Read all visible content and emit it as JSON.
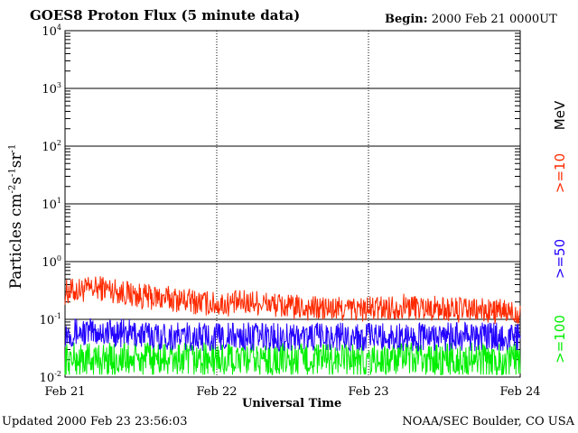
{
  "header": {
    "title": "GOES8 Proton Flux (5 minute data)",
    "begin_label": "Begin:",
    "begin_value": "2000 Feb 21 0000UT"
  },
  "footer": {
    "updated_label": "Updated",
    "updated_value": "2000 Feb 23 23:56:03",
    "source": "NOAA/SEC Boulder, CO USA"
  },
  "colors": {
    "s10": "#ff2a00",
    "s50": "#2200ff",
    "s100": "#00ee00",
    "grid": "#000000"
  },
  "chart_data": {
    "type": "line",
    "title": "GOES8 Proton Flux (5 minute data)",
    "xlabel": "Universal Time",
    "ylabel_base": "Particles cm",
    "ylabel_parts": [
      {
        "text": "Particles cm",
        "sup": "-2"
      },
      {
        "text": "s",
        "sup": "-1"
      },
      {
        "text": "sr",
        "sup": "-1"
      }
    ],
    "unit_label": "MeV",
    "x_ticks": [
      "Feb 21",
      "Feb 22",
      "Feb 23",
      "Feb 24"
    ],
    "xlim_days": [
      0,
      3
    ],
    "y_scale": "log",
    "ylim": [
      0.01,
      10000
    ],
    "y_ticks": [
      {
        "base": "10",
        "exp": "-2"
      },
      {
        "base": "10",
        "exp": "-1"
      },
      {
        "base": "10",
        "exp": "0"
      },
      {
        "base": "10",
        "exp": "1"
      },
      {
        "base": "10",
        "exp": "2"
      },
      {
        "base": "10",
        "exp": "3"
      },
      {
        "base": "10",
        "exp": "4"
      }
    ],
    "grid": true,
    "series": [
      {
        "name": ">=10",
        "key": "s10",
        "x": [
          "Feb 21 00:00",
          "Feb 21 06:00",
          "Feb 21 12:00",
          "Feb 21 18:00",
          "Feb 22 00:00",
          "Feb 22 06:00",
          "Feb 22 12:00",
          "Feb 22 18:00",
          "Feb 23 00:00",
          "Feb 23 06:00",
          "Feb 23 12:00",
          "Feb 23 18:00",
          "Feb 24 00:00"
        ],
        "values": [
          0.3,
          0.35,
          0.25,
          0.22,
          0.18,
          0.2,
          0.16,
          0.15,
          0.15,
          0.17,
          0.15,
          0.14,
          0.13
        ]
      },
      {
        "name": ">=50",
        "key": "s50",
        "x": [
          "Feb 21 00:00",
          "Feb 21 06:00",
          "Feb 21 12:00",
          "Feb 21 18:00",
          "Feb 22 00:00",
          "Feb 22 06:00",
          "Feb 22 12:00",
          "Feb 22 18:00",
          "Feb 23 00:00",
          "Feb 23 06:00",
          "Feb 23 12:00",
          "Feb 23 18:00",
          "Feb 24 00:00"
        ],
        "values": [
          0.06,
          0.06,
          0.055,
          0.05,
          0.05,
          0.05,
          0.05,
          0.05,
          0.05,
          0.05,
          0.05,
          0.05,
          0.05
        ]
      },
      {
        "name": ">=100",
        "key": "s100",
        "x": [
          "Feb 21 00:00",
          "Feb 21 06:00",
          "Feb 21 12:00",
          "Feb 21 18:00",
          "Feb 22 00:00",
          "Feb 22 06:00",
          "Feb 22 12:00",
          "Feb 22 18:00",
          "Feb 23 00:00",
          "Feb 23 06:00",
          "Feb 23 12:00",
          "Feb 23 18:00",
          "Feb 24 00:00"
        ],
        "values": [
          0.02,
          0.02,
          0.02,
          0.02,
          0.02,
          0.02,
          0.02,
          0.02,
          0.02,
          0.02,
          0.02,
          0.02,
          0.02
        ]
      }
    ]
  }
}
